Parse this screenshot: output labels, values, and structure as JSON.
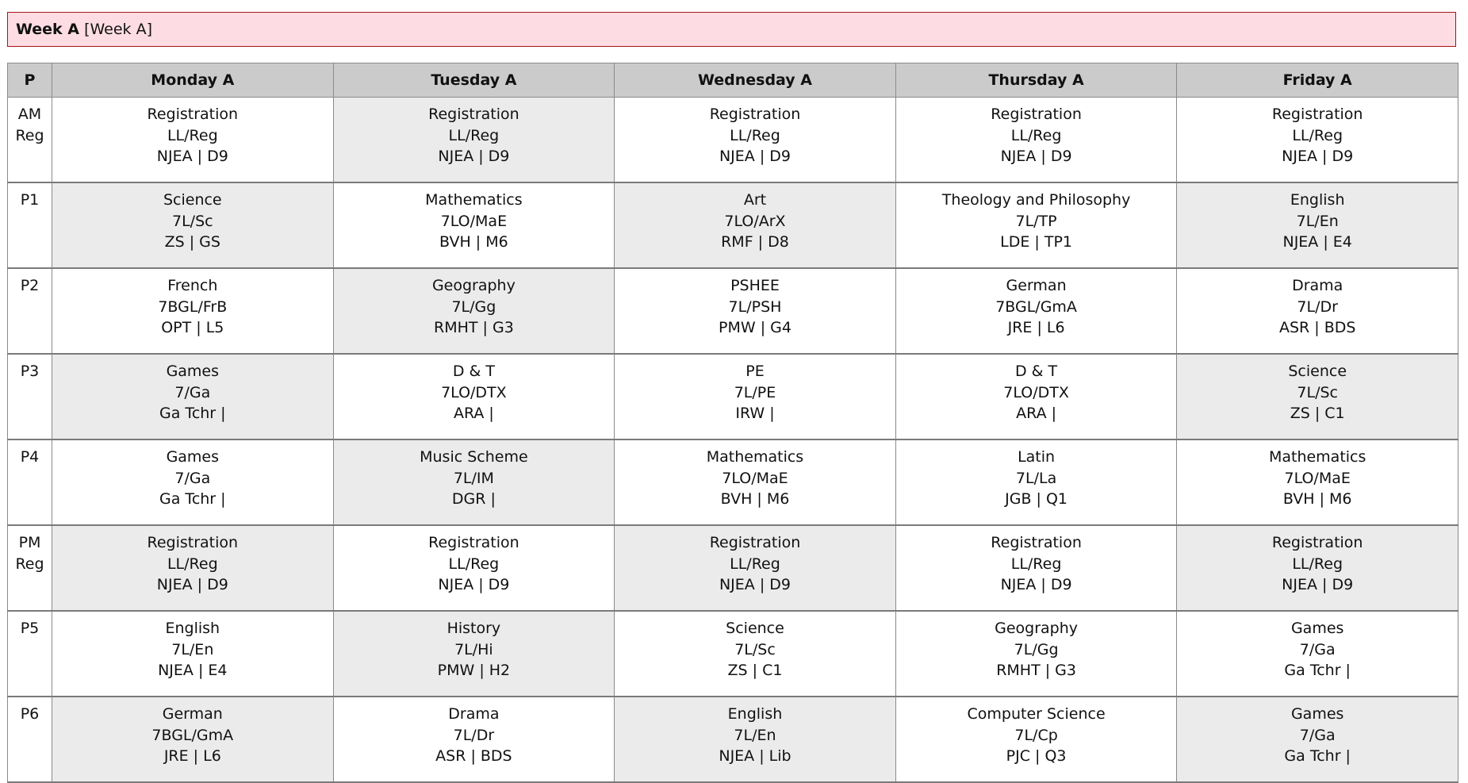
{
  "banner": {
    "title_bold": "Week A",
    "title_rest": "[Week A]"
  },
  "colors": {
    "banner_bg": "#fddde3",
    "banner_border": "#a31515",
    "header_bg": "#cbcbcb",
    "shaded_cell": "#ebebeb"
  },
  "table": {
    "period_header": "P",
    "days": [
      "Monday A",
      "Tuesday A",
      "Wednesday A",
      "Thursday A",
      "Friday A"
    ],
    "rows": [
      {
        "period": [
          "AM",
          "Reg"
        ],
        "cells": [
          {
            "shaded": false,
            "subject": "Registration",
            "group": "LL/Reg",
            "staff_room": "NJEA | D9"
          },
          {
            "shaded": true,
            "subject": "Registration",
            "group": "LL/Reg",
            "staff_room": "NJEA | D9"
          },
          {
            "shaded": false,
            "subject": "Registration",
            "group": "LL/Reg",
            "staff_room": "NJEA | D9"
          },
          {
            "shaded": false,
            "subject": "Registration",
            "group": "LL/Reg",
            "staff_room": "NJEA | D9"
          },
          {
            "shaded": false,
            "subject": "Registration",
            "group": "LL/Reg",
            "staff_room": "NJEA | D9"
          }
        ]
      },
      {
        "period": [
          "P1"
        ],
        "cells": [
          {
            "shaded": true,
            "subject": "Science",
            "group": "7L/Sc",
            "staff_room": "ZS | GS"
          },
          {
            "shaded": false,
            "subject": "Mathematics",
            "group": "7LO/MaE",
            "staff_room": "BVH | M6"
          },
          {
            "shaded": true,
            "subject": "Art",
            "group": "7LO/ArX",
            "staff_room": "RMF | D8"
          },
          {
            "shaded": false,
            "subject": "Theology and Philosophy",
            "group": "7L/TP",
            "staff_room": "LDE | TP1"
          },
          {
            "shaded": true,
            "subject": "English",
            "group": "7L/En",
            "staff_room": "NJEA | E4"
          }
        ]
      },
      {
        "period": [
          "P2"
        ],
        "cells": [
          {
            "shaded": false,
            "subject": "French",
            "group": "7BGL/FrB",
            "staff_room": "OPT | L5"
          },
          {
            "shaded": true,
            "subject": "Geography",
            "group": "7L/Gg",
            "staff_room": "RMHT | G3"
          },
          {
            "shaded": false,
            "subject": "PSHEE",
            "group": "7L/PSH",
            "staff_room": "PMW | G4"
          },
          {
            "shaded": false,
            "subject": "German",
            "group": "7BGL/GmA",
            "staff_room": "JRE | L6"
          },
          {
            "shaded": false,
            "subject": "Drama",
            "group": "7L/Dr",
            "staff_room": "ASR | BDS"
          }
        ]
      },
      {
        "period": [
          "P3"
        ],
        "cells": [
          {
            "shaded": true,
            "subject": "Games",
            "group": "7/Ga",
            "staff_room": "Ga Tchr |"
          },
          {
            "shaded": false,
            "subject": "D & T",
            "group": "7LO/DTX",
            "staff_room": "ARA |"
          },
          {
            "shaded": false,
            "subject": "PE",
            "group": "7L/PE",
            "staff_room": "IRW |"
          },
          {
            "shaded": false,
            "subject": "D & T",
            "group": "7LO/DTX",
            "staff_room": "ARA |"
          },
          {
            "shaded": true,
            "subject": "Science",
            "group": "7L/Sc",
            "staff_room": "ZS | C1"
          }
        ]
      },
      {
        "period": [
          "P4"
        ],
        "cells": [
          {
            "shaded": false,
            "subject": "Games",
            "group": "7/Ga",
            "staff_room": "Ga Tchr |"
          },
          {
            "shaded": true,
            "subject": "Music Scheme",
            "group": "7L/IM",
            "staff_room": "DGR |"
          },
          {
            "shaded": false,
            "subject": "Mathematics",
            "group": "7LO/MaE",
            "staff_room": "BVH | M6"
          },
          {
            "shaded": false,
            "subject": "Latin",
            "group": "7L/La",
            "staff_room": "JGB | Q1"
          },
          {
            "shaded": false,
            "subject": "Mathematics",
            "group": "7LO/MaE",
            "staff_room": "BVH | M6"
          }
        ]
      },
      {
        "period": [
          "PM",
          "Reg"
        ],
        "cells": [
          {
            "shaded": true,
            "subject": "Registration",
            "group": "LL/Reg",
            "staff_room": "NJEA | D9"
          },
          {
            "shaded": false,
            "subject": "Registration",
            "group": "LL/Reg",
            "staff_room": "NJEA | D9"
          },
          {
            "shaded": true,
            "subject": "Registration",
            "group": "LL/Reg",
            "staff_room": "NJEA | D9"
          },
          {
            "shaded": false,
            "subject": "Registration",
            "group": "LL/Reg",
            "staff_room": "NJEA | D9"
          },
          {
            "shaded": true,
            "subject": "Registration",
            "group": "LL/Reg",
            "staff_room": "NJEA | D9"
          }
        ]
      },
      {
        "period": [
          "P5"
        ],
        "cells": [
          {
            "shaded": false,
            "subject": "English",
            "group": "7L/En",
            "staff_room": "NJEA | E4"
          },
          {
            "shaded": true,
            "subject": "History",
            "group": "7L/Hi",
            "staff_room": "PMW | H2"
          },
          {
            "shaded": false,
            "subject": "Science",
            "group": "7L/Sc",
            "staff_room": "ZS | C1"
          },
          {
            "shaded": false,
            "subject": "Geography",
            "group": "7L/Gg",
            "staff_room": "RMHT | G3"
          },
          {
            "shaded": false,
            "subject": "Games",
            "group": "7/Ga",
            "staff_room": "Ga Tchr |"
          }
        ]
      },
      {
        "period": [
          "P6"
        ],
        "cells": [
          {
            "shaded": true,
            "subject": "German",
            "group": "7BGL/GmA",
            "staff_room": "JRE | L6"
          },
          {
            "shaded": false,
            "subject": "Drama",
            "group": "7L/Dr",
            "staff_room": "ASR | BDS"
          },
          {
            "shaded": true,
            "subject": "English",
            "group": "7L/En",
            "staff_room": "NJEA | Lib"
          },
          {
            "shaded": false,
            "subject": "Computer Science",
            "group": "7L/Cp",
            "staff_room": "PJC | Q3"
          },
          {
            "shaded": true,
            "subject": "Games",
            "group": "7/Ga",
            "staff_room": "Ga Tchr |"
          }
        ]
      }
    ]
  }
}
